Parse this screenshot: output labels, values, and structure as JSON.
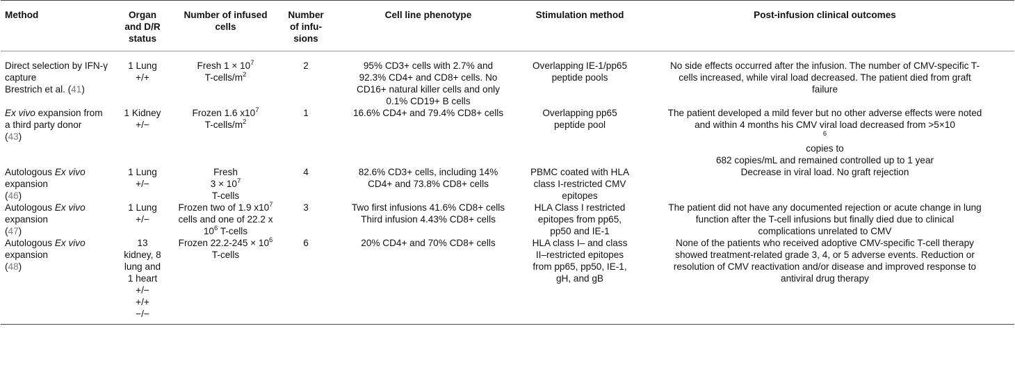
{
  "headers": {
    "method": "Method",
    "organ": [
      "Organ",
      "and D/R",
      "status"
    ],
    "infused": [
      "Number of infused",
      "cells"
    ],
    "infusions": [
      "Number",
      "of infu-",
      "sions"
    ],
    "phenotype": "Cell line phenotype",
    "stimulation": "Stimulation method",
    "outcomes": "Post-infusion clinical outcomes"
  },
  "rows": [
    {
      "method": {
        "pre_italic": "Direct selection by IFN-γ capture",
        "italic": "",
        "post_italic": "",
        "author": "Brestrich et al. (",
        "ref": "41",
        "ref_close": ")"
      },
      "organ": [
        "1 Lung",
        "+/+"
      ],
      "infused": {
        "line1_pre": "Fresh 1 × 10",
        "line1_sup": "7",
        "line2_pre": "T-cells/m",
        "line2_sup": "2"
      },
      "infusions": "2",
      "phenotype": [
        "95% CD3+ cells with 2.7% and",
        "92.3% CD4+ and CD8+ cells. No",
        "CD16+ natural killer cells and only",
        "0.1% CD19+ B cells"
      ],
      "stimulation": [
        "Overlapping IE-1/pp65",
        "peptide pools"
      ],
      "outcomes": [
        "No side effects occurred after the infusion. The number of CMV-specific T-",
        "cells increased, while viral load decreased. The patient died from graft",
        "failure"
      ]
    },
    {
      "method": {
        "italic": "Ex vivo",
        "post_italic": " expansion from a third party donor",
        "ref": "43"
      },
      "organ": [
        "1 Kidney",
        "+/−"
      ],
      "infused": {
        "line1_pre": "Frozen 1.6 x10",
        "line1_sup": "7",
        "line2_pre": "T-cells/m",
        "line2_sup": "2"
      },
      "infusions": "1",
      "phenotype": [
        "16.6% CD4+ and 79.4% CD8+ cells"
      ],
      "stimulation": [
        "Overlapping pp65",
        "peptide pool"
      ],
      "outcomes": {
        "line1": "The patient developed a mild fever but no other adverse effects were noted",
        "line2_pre": "and within 4 months his CMV viral load decreased from >5×10",
        "line2_sup": "6",
        "line2_post": " copies to",
        "line3": "682 copies/mL and remained controlled up to 1 year"
      }
    },
    {
      "method": {
        "pre_italic": "Autologous ",
        "italic": "Ex vivo",
        "post_italic": " expansion",
        "ref": "46"
      },
      "organ": [
        "1 Lung",
        "+/−"
      ],
      "infused": [
        "Fresh",
        "3 × 10",
        "7",
        "T-cells"
      ],
      "infusions": "4",
      "phenotype": [
        "82.6% CD3+ cells, including 14%",
        "CD4+ and 73.8% CD8+ cells"
      ],
      "stimulation": [
        "PBMC coated with HLA",
        "class I-restricted CMV",
        "epitopes"
      ],
      "outcomes": [
        "Decrease in viral load. No graft rejection"
      ]
    },
    {
      "method": {
        "pre_italic": "Autologous ",
        "italic": "Ex vivo",
        "post_italic": " expansion",
        "ref": "47"
      },
      "organ": [
        "1 Lung",
        "+/−"
      ],
      "infused": {
        "line1_pre": "Frozen two of 1.9 x10",
        "line1_sup": "7",
        "line2": "cells and one of 22.2 x",
        "line3_pre": "10",
        "line3_sup": "6",
        "line3_post": " T-cells"
      },
      "infusions": "3",
      "phenotype": [
        "Two first infusions 41.6% CD8+ cells",
        "Third infusion 4.43% CD8+ cells"
      ],
      "stimulation": [
        "HLA Class I restricted",
        "epitopes from pp65,",
        "pp50 and IE-1"
      ],
      "outcomes": [
        "The patient did not have any documented rejection or acute change in lung",
        "function after the T-cell infusions but finally died due to clinical",
        "complications unrelated to CMV"
      ]
    },
    {
      "method": {
        "pre_italic": "Autologous ",
        "italic": "Ex vivo",
        "post_italic": " expansion",
        "ref": "48"
      },
      "organ": [
        "13",
        "kidney, 8",
        "lung and",
        "1 heart",
        "+/−",
        "+/+",
        "−/−"
      ],
      "infused": {
        "line1_pre": "Frozen 22.2-245 × 10",
        "line1_sup": "6",
        "line2": "T-cells"
      },
      "infusions": "6",
      "phenotype": [
        "20% CD4+ and 70% CD8+ cells"
      ],
      "stimulation": [
        "HLA class I– and class",
        "II–restricted epitopes",
        "from pp65, pp50, IE-1,",
        "gH, and gB"
      ],
      "outcomes": [
        "None of the patients who received adoptive CMV-specific T-cell therapy",
        "showed treatment-related grade 3, 4, or 5 adverse events. Reduction or",
        "resolution of CMV reactivation and/or disease and improved response to",
        "antiviral drug therapy"
      ]
    }
  ]
}
